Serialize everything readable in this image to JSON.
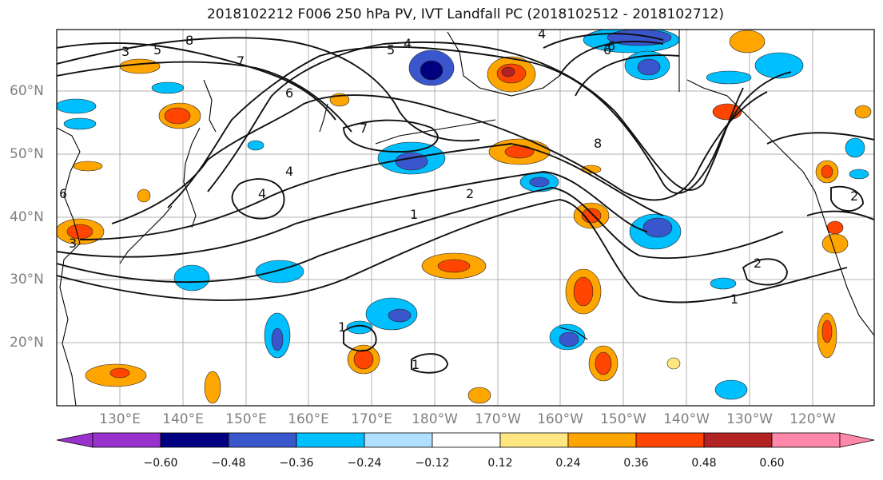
{
  "title": "2018102212 F006 250 hPa PV, IVT Landfall PC (2018102512 - 2018102712)",
  "lat_labels": [
    "60°N",
    "50°N",
    "40°N",
    "30°N",
    "20°N"
  ],
  "lon_labels": [
    "130°E",
    "140°E",
    "150°E",
    "160°E",
    "170°E",
    "180°W",
    "170°W",
    "160°W",
    "150°W",
    "140°W",
    "130°W",
    "120°W"
  ],
  "contour_labels": [
    "8",
    "7",
    "6",
    "5",
    "5",
    "4",
    "3",
    "6",
    "7",
    "4",
    "4",
    "2",
    "1",
    "1",
    "1",
    "2",
    "2",
    "8",
    "6",
    "4",
    "3",
    "1",
    "6"
  ],
  "colorbar": {
    "ticks": [
      "−0.60",
      "−0.48",
      "−0.36",
      "−0.24",
      "−0.12",
      "0.12",
      "0.24",
      "0.36",
      "0.48",
      "0.60"
    ],
    "colors": [
      "#9932cc",
      "#000080",
      "#3a56cc",
      "#00bfff",
      "#b0e0ff",
      "#ffffff",
      "#ffe680",
      "#ffa500",
      "#ff4500",
      "#b22222",
      "#ff88aa"
    ]
  }
}
